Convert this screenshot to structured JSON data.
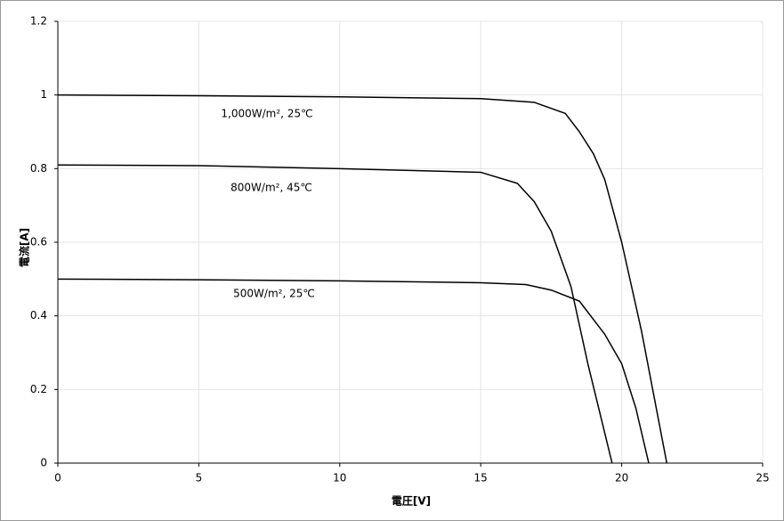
{
  "chart_data": {
    "type": "line",
    "x_label": "電圧[V]",
    "y_label": "電流[A]",
    "xlim": [
      0,
      25
    ],
    "xticks": [
      0,
      5,
      10,
      15,
      20,
      25
    ],
    "ylim": [
      0,
      1.2
    ],
    "yticks": [
      0,
      0.2,
      0.4,
      0.6,
      0.8,
      1,
      1.2
    ],
    "grid": true,
    "series": [
      {
        "name": "1,000W/m², 25℃",
        "color": "#000000",
        "x": [
          0,
          5,
          10,
          15,
          16.9,
          18.0,
          18.5,
          19.0,
          19.4,
          20.0,
          20.7,
          21.6
        ],
        "values": [
          1.0,
          0.998,
          0.995,
          0.99,
          0.98,
          0.95,
          0.9,
          0.84,
          0.77,
          0.6,
          0.36,
          0
        ]
      },
      {
        "name": "800W/m², 45℃",
        "color": "#000000",
        "x": [
          0,
          5,
          10,
          15,
          16.3,
          16.9,
          17.5,
          18.2,
          18.8,
          19.66
        ],
        "values": [
          0.81,
          0.808,
          0.8,
          0.79,
          0.76,
          0.71,
          0.63,
          0.48,
          0.27,
          0
        ]
      },
      {
        "name": "500W/m², 25℃",
        "color": "#000000",
        "x": [
          0,
          5,
          10,
          15,
          16.6,
          17.5,
          18.5,
          19.4,
          20.0,
          20.5,
          20.96
        ],
        "values": [
          0.5,
          0.498,
          0.495,
          0.49,
          0.485,
          0.47,
          0.44,
          0.35,
          0.27,
          0.15,
          0
        ]
      }
    ]
  }
}
